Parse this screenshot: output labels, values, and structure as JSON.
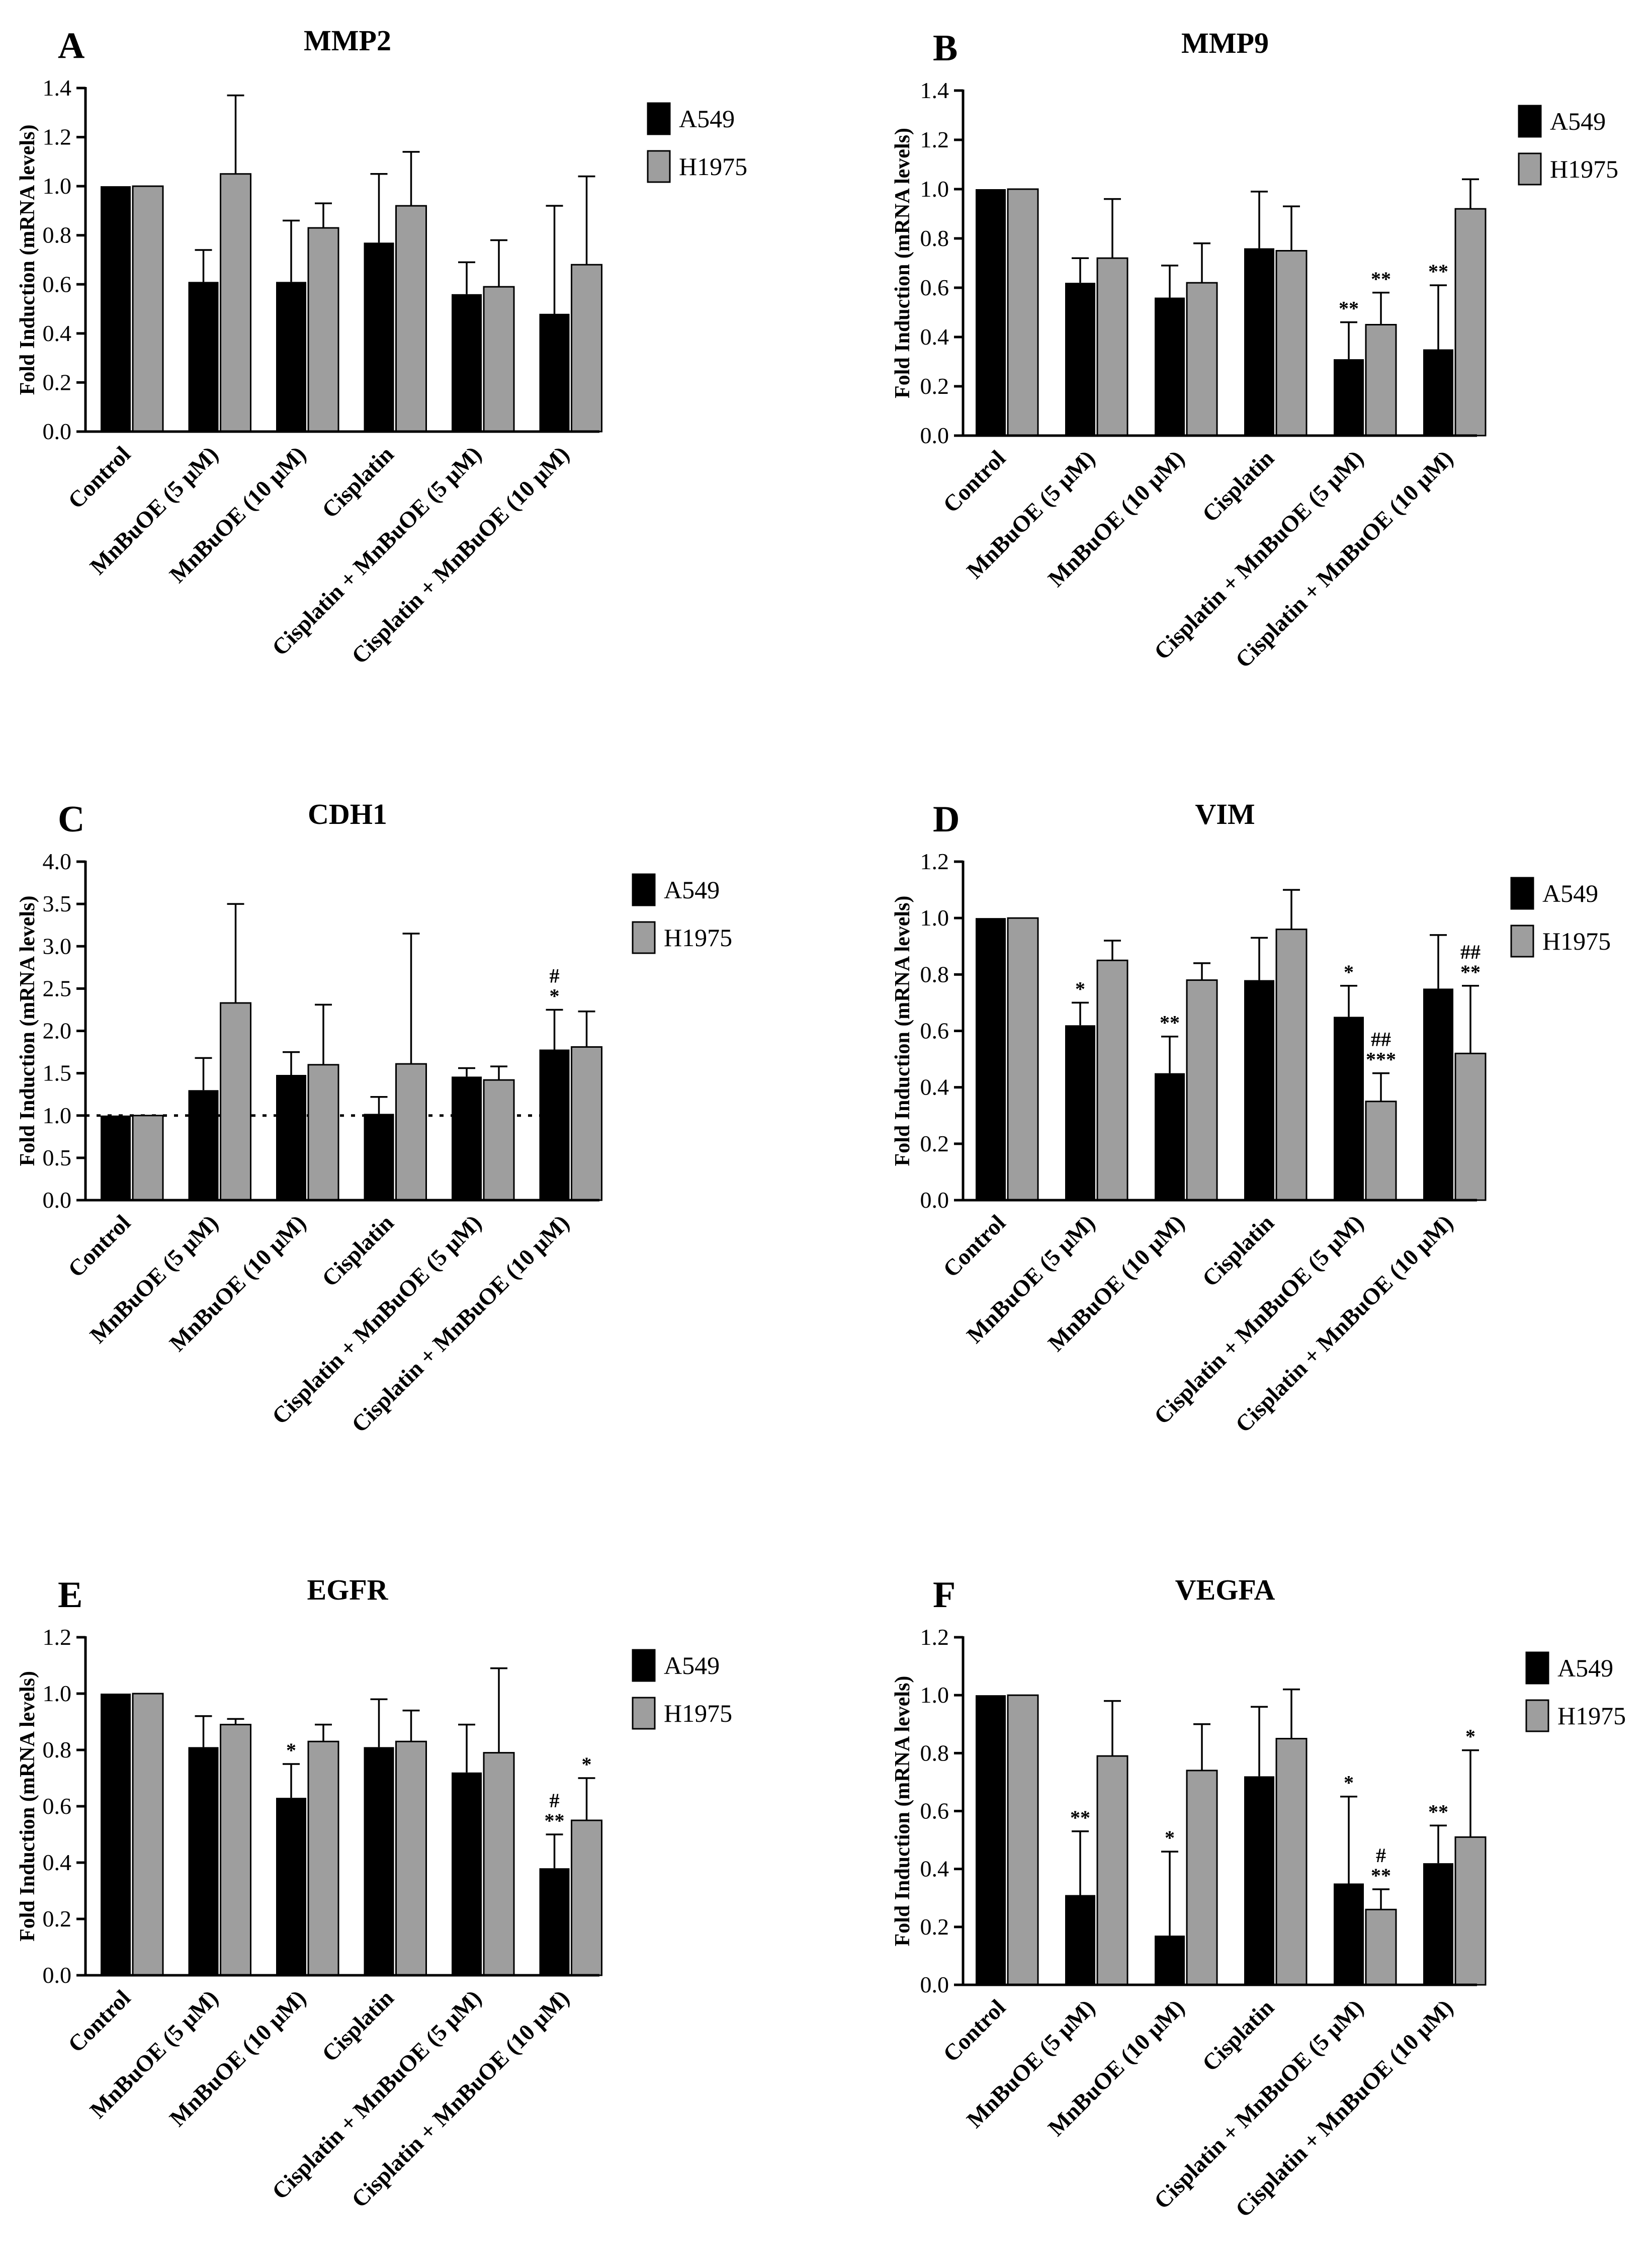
{
  "figure": {
    "categories": [
      "Control",
      "MnBuOE (5 μM)",
      "MnBuOE (10 μM)",
      "Cisplatin",
      "Cisplatin + MnBuOE (5 μM)",
      "Cisplatin + MnBuOE (10 μM)"
    ],
    "ylabel": "Fold Induction (mRNA levels)",
    "legend": [
      {
        "name": "A549",
        "color": "#000000"
      },
      {
        "name": "H1975",
        "color": "#9e9e9e"
      }
    ]
  },
  "chart_data": [
    {
      "type": "bar",
      "panel": "A",
      "title": "MMP2",
      "categories": [
        "Control",
        "MnBuOE (5 μM)",
        "MnBuOE (10 μM)",
        "Cisplatin",
        "Cisplatin + MnBuOE (5 μM)",
        "Cisplatin + MnBuOE (10 μM)"
      ],
      "xlabel": "",
      "ylabel": "Fold Induction (mRNA levels)",
      "ylim": [
        0,
        1.4
      ],
      "yticks": [
        "0.0",
        "0.2",
        "0.4",
        "0.6",
        "0.8",
        "1.0",
        "1.2",
        "1.4"
      ],
      "series": [
        {
          "name": "A549",
          "values": [
            1.0,
            0.61,
            0.61,
            0.77,
            0.56,
            0.48
          ],
          "errors": [
            0,
            0.13,
            0.25,
            0.28,
            0.13,
            0.44
          ],
          "annotations": [
            "",
            "",
            "",
            "",
            "",
            ""
          ]
        },
        {
          "name": "H1975",
          "values": [
            1.0,
            1.05,
            0.83,
            0.92,
            0.59,
            0.68
          ],
          "errors": [
            0,
            0.32,
            0.1,
            0.22,
            0.19,
            0.36
          ],
          "annotations": [
            "",
            "",
            "",
            "",
            "",
            ""
          ]
        }
      ]
    },
    {
      "type": "bar",
      "panel": "B",
      "title": "MMP9",
      "categories": [
        "Control",
        "MnBuOE (5 μM)",
        "MnBuOE (10 μM)",
        "Cisplatin",
        "Cisplatin + MnBuOE (5 μM)",
        "Cisplatin + MnBuOE (10 μM)"
      ],
      "xlabel": "",
      "ylabel": "Fold Induction (mRNA levels)",
      "ylim": [
        0,
        1.4
      ],
      "yticks": [
        "0.0",
        "0.2",
        "0.4",
        "0.6",
        "0.8",
        "1.0",
        "1.2",
        "1.4"
      ],
      "series": [
        {
          "name": "A549",
          "values": [
            1.0,
            0.62,
            0.56,
            0.76,
            0.31,
            0.35
          ],
          "errors": [
            0,
            0.1,
            0.13,
            0.23,
            0.15,
            0.26
          ],
          "annotations": [
            "",
            "",
            "",
            "",
            "**",
            "**"
          ]
        },
        {
          "name": "H1975",
          "values": [
            1.0,
            0.72,
            0.62,
            0.75,
            0.45,
            0.92
          ],
          "errors": [
            0,
            0.24,
            0.16,
            0.18,
            0.13,
            0.12
          ],
          "annotations": [
            "",
            "",
            "",
            "",
            "**",
            ""
          ]
        }
      ]
    },
    {
      "type": "bar",
      "panel": "C",
      "title": "CDH1",
      "categories": [
        "Control",
        "MnBuOE (5 μM)",
        "MnBuOE (10 μM)",
        "Cisplatin",
        "Cisplatin + MnBuOE (5 μM)",
        "Cisplatin + MnBuOE (10 μM)"
      ],
      "xlabel": "",
      "ylabel": "Fold Induction (mRNA levels)",
      "ylim": [
        0,
        4.0
      ],
      "yticks": [
        "0.0",
        "0.5",
        "1.0",
        "1.5",
        "2.0",
        "2.5",
        "3.0",
        "3.5",
        "4.0"
      ],
      "reference_line": 1.0,
      "series": [
        {
          "name": "A549",
          "values": [
            1.0,
            1.3,
            1.48,
            1.02,
            1.46,
            1.78
          ],
          "errors": [
            0,
            0.38,
            0.27,
            0.2,
            0.1,
            0.47
          ],
          "annotations": [
            "",
            "",
            "",
            "",
            "",
            "#\n*"
          ]
        },
        {
          "name": "H1975",
          "values": [
            1.0,
            2.33,
            1.6,
            1.61,
            1.42,
            1.81
          ],
          "errors": [
            0,
            1.17,
            0.71,
            1.54,
            0.16,
            0.42
          ],
          "annotations": [
            "",
            "",
            "",
            "",
            "",
            ""
          ]
        }
      ]
    },
    {
      "type": "bar",
      "panel": "D",
      "title": "VIM",
      "categories": [
        "Control",
        "MnBuOE (5 μM)",
        "MnBuOE (10 μM)",
        "Cisplatin",
        "Cisplatin + MnBuOE (5 μM)",
        "Cisplatin + MnBuOE (10 μM)"
      ],
      "xlabel": "",
      "ylabel": "Fold Induction (mRNA levels)",
      "ylim": [
        0,
        1.2
      ],
      "yticks": [
        "0.0",
        "0.2",
        "0.4",
        "0.6",
        "0.8",
        "1.0",
        "1.2"
      ],
      "series": [
        {
          "name": "A549",
          "values": [
            1.0,
            0.62,
            0.45,
            0.78,
            0.65,
            0.75
          ],
          "errors": [
            0,
            0.08,
            0.13,
            0.15,
            0.11,
            0.19
          ],
          "annotations": [
            "",
            "*",
            "**",
            "",
            "*",
            ""
          ]
        },
        {
          "name": "H1975",
          "values": [
            1.0,
            0.85,
            0.78,
            0.96,
            0.35,
            0.52
          ],
          "errors": [
            0,
            0.07,
            0.06,
            0.14,
            0.1,
            0.24
          ],
          "annotations": [
            "",
            "",
            "",
            "",
            "##\n***",
            "##\n**"
          ]
        }
      ]
    },
    {
      "type": "bar",
      "panel": "E",
      "title": "EGFR",
      "categories": [
        "Control",
        "MnBuOE (5 μM)",
        "MnBuOE (10 μM)",
        "Cisplatin",
        "Cisplatin + MnBuOE (5 μM)",
        "Cisplatin + MnBuOE (10 μM)"
      ],
      "xlabel": "",
      "ylabel": "Fold Induction (mRNA levels)",
      "ylim": [
        0,
        1.2
      ],
      "yticks": [
        "0.0",
        "0.2",
        "0.4",
        "0.6",
        "0.8",
        "1.0",
        "1.2"
      ],
      "series": [
        {
          "name": "A549",
          "values": [
            1.0,
            0.81,
            0.63,
            0.81,
            0.72,
            0.38
          ],
          "errors": [
            0,
            0.11,
            0.12,
            0.17,
            0.17,
            0.12
          ],
          "annotations": [
            "",
            "",
            "*",
            "",
            "",
            "#\n**"
          ]
        },
        {
          "name": "H1975",
          "values": [
            1.0,
            0.89,
            0.83,
            0.83,
            0.79,
            0.55
          ],
          "errors": [
            0,
            0.02,
            0.06,
            0.11,
            0.3,
            0.15
          ],
          "annotations": [
            "",
            "",
            "",
            "",
            "",
            "*"
          ]
        }
      ]
    },
    {
      "type": "bar",
      "panel": "F",
      "title": "VEGFA",
      "categories": [
        "Control",
        "MnBuOE (5 μM)",
        "MnBuOE (10 μM)",
        "Cisplatin",
        "Cisplatin + MnBuOE (5 μM)",
        "Cisplatin + MnBuOE (10 μM)"
      ],
      "xlabel": "",
      "ylabel": "Fold Induction (mRNA levels)",
      "ylim": [
        0,
        1.2
      ],
      "yticks": [
        "0.0",
        "0.2",
        "0.4",
        "0.6",
        "0.8",
        "1.0",
        "1.2"
      ],
      "series": [
        {
          "name": "A549",
          "values": [
            1.0,
            0.31,
            0.17,
            0.72,
            0.35,
            0.42
          ],
          "errors": [
            0,
            0.22,
            0.29,
            0.24,
            0.3,
            0.13
          ],
          "annotations": [
            "",
            "**",
            "*",
            "",
            "*",
            "**"
          ]
        },
        {
          "name": "H1975",
          "values": [
            1.0,
            0.79,
            0.74,
            0.85,
            0.26,
            0.51
          ],
          "errors": [
            0,
            0.19,
            0.16,
            0.17,
            0.07,
            0.3
          ],
          "annotations": [
            "",
            "",
            "",
            "",
            "#\n**",
            "*"
          ]
        }
      ]
    }
  ]
}
